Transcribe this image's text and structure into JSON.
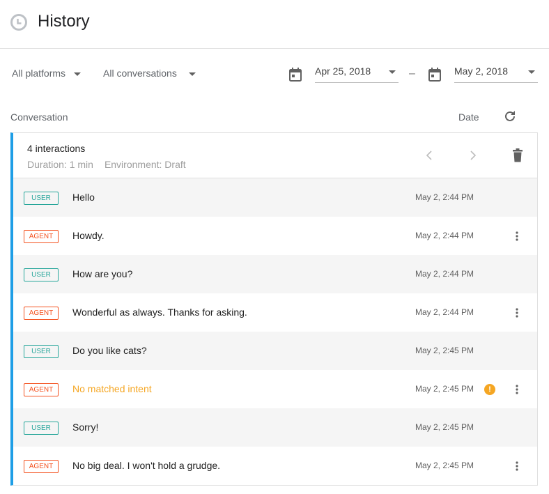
{
  "header": {
    "title": "History",
    "icon": "clock-icon"
  },
  "filters": {
    "platform": "All platforms",
    "conversations": "All conversations",
    "date_from": "Apr 25, 2018",
    "date_to": "May 2, 2018",
    "separator": "–"
  },
  "columns": {
    "conversation": "Conversation",
    "date": "Date"
  },
  "summary": {
    "interactions": "4 interactions",
    "duration": "Duration: 1 min",
    "environment": "Environment: Draft"
  },
  "colors": {
    "accent": "#1e9ee6",
    "user": "#26a69a",
    "agent": "#f4511e",
    "warning": "#f5a623"
  },
  "rows": [
    {
      "role": "USER",
      "text": "Hello",
      "time": "May 2, 2:44 PM"
    },
    {
      "role": "AGENT",
      "text": "Howdy.",
      "time": "May 2, 2:44 PM"
    },
    {
      "role": "USER",
      "text": "How are you?",
      "time": "May 2, 2:44 PM"
    },
    {
      "role": "AGENT",
      "text": "Wonderful as always. Thanks for asking.",
      "time": "May 2, 2:44 PM"
    },
    {
      "role": "USER",
      "text": "Do you like cats?",
      "time": "May 2, 2:45 PM"
    },
    {
      "role": "AGENT",
      "text": "No matched intent",
      "time": "May 2, 2:45 PM",
      "warning": true
    },
    {
      "role": "USER",
      "text": "Sorry!",
      "time": "May 2, 2:45 PM"
    },
    {
      "role": "AGENT",
      "text": "No big deal. I won't hold a grudge.",
      "time": "May 2, 2:45 PM"
    }
  ]
}
